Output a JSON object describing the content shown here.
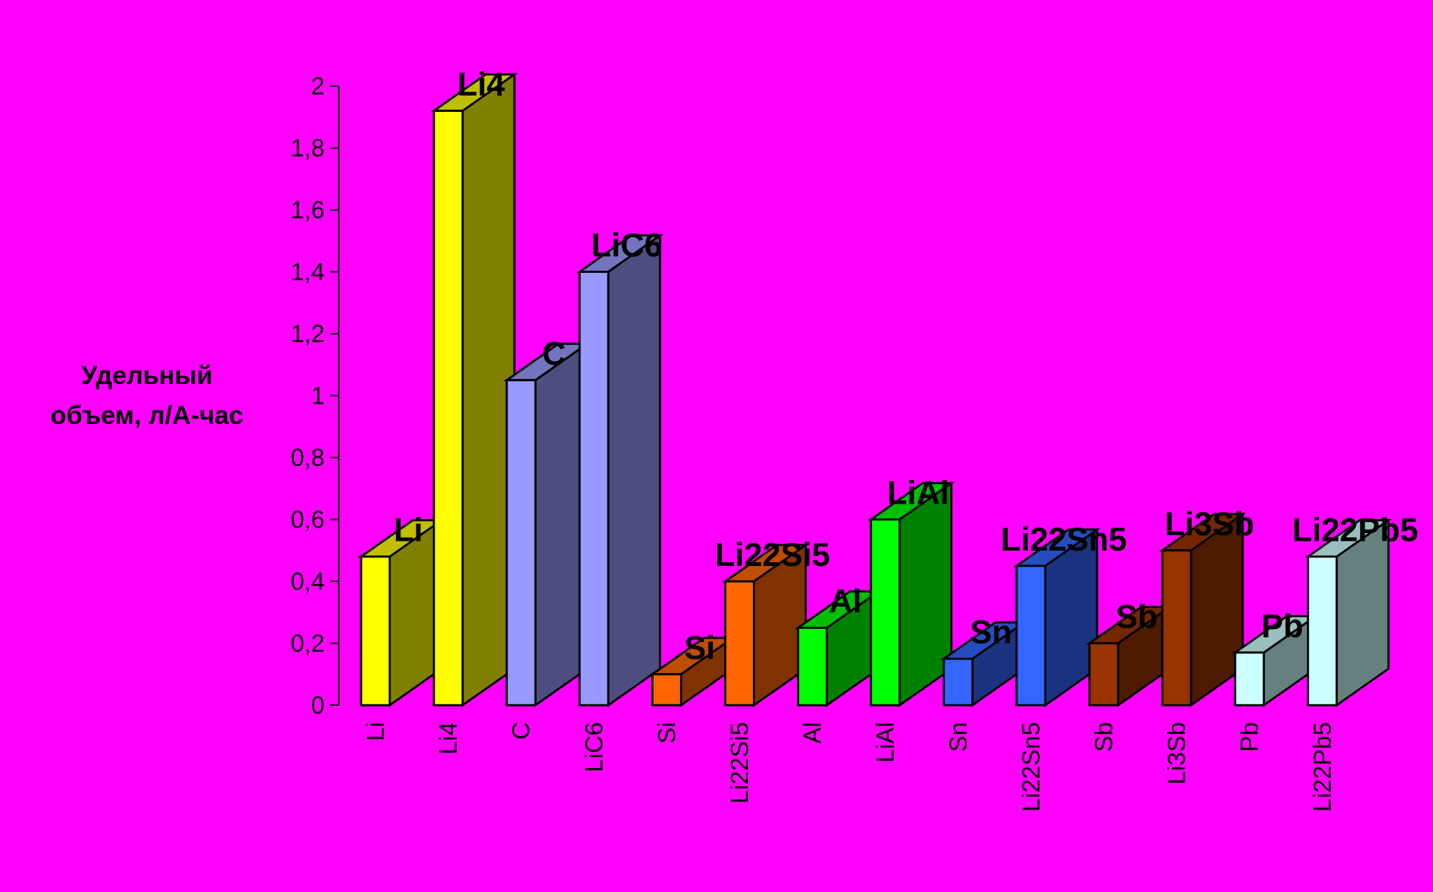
{
  "chart_data": {
    "type": "bar",
    "ylabel": [
      "Удельный",
      "объем, л/А-час"
    ],
    "ylim": [
      0,
      2
    ],
    "yticks": [
      "0",
      "0,2",
      "0,4",
      "0,6",
      "0,8",
      "1",
      "1,2",
      "1,4",
      "1,6",
      "1,8",
      "2"
    ],
    "categories": [
      "Li",
      "Li4",
      "C",
      "LiC6",
      "Si",
      "Li22Si5",
      "Al",
      "LiAl",
      "Sn",
      "Li22Sn5",
      "Sb",
      "Li3Sb",
      "Pb",
      "Li22Pb5"
    ],
    "data_labels": [
      "Li",
      "Li4",
      "C",
      "LiC6",
      "Si",
      "Li22Si5",
      "Al",
      "LiAl",
      "Sn",
      "Li22Sn5",
      "Sb",
      "Li3Sb",
      "Pb",
      "Li22Pb5"
    ],
    "values": [
      0.48,
      1.92,
      1.05,
      1.4,
      0.1,
      0.4,
      0.25,
      0.6,
      0.15,
      0.45,
      0.2,
      0.5,
      0.17,
      0.48
    ],
    "colors": [
      {
        "front": "#ffff00",
        "side": "#808000",
        "top": "#bfbf00"
      },
      {
        "front": "#ffff00",
        "side": "#808000",
        "top": "#bfbf00"
      },
      {
        "front": "#9999ff",
        "side": "#4d4d80",
        "top": "#7373bf"
      },
      {
        "front": "#9999ff",
        "side": "#4d4d80",
        "top": "#7373bf"
      },
      {
        "front": "#ff6600",
        "side": "#803300",
        "top": "#bf4d00"
      },
      {
        "front": "#ff6600",
        "side": "#803300",
        "top": "#bf4d00"
      },
      {
        "front": "#00ff00",
        "side": "#008000",
        "top": "#00bf00"
      },
      {
        "front": "#00ff00",
        "side": "#008000",
        "top": "#00bf00"
      },
      {
        "front": "#3366ff",
        "side": "#1a3380",
        "top": "#264dbf"
      },
      {
        "front": "#3366ff",
        "side": "#1a3380",
        "top": "#264dbf"
      },
      {
        "front": "#993300",
        "side": "#4d1a00",
        "top": "#732600"
      },
      {
        "front": "#993300",
        "side": "#4d1a00",
        "top": "#732600"
      },
      {
        "front": "#ccffff",
        "side": "#668080",
        "top": "#99bfbf"
      },
      {
        "front": "#ccffff",
        "side": "#668080",
        "top": "#99bfbf"
      }
    ],
    "background": "#ff00ff",
    "grid": false,
    "legend": "none",
    "style": "3d-column"
  }
}
